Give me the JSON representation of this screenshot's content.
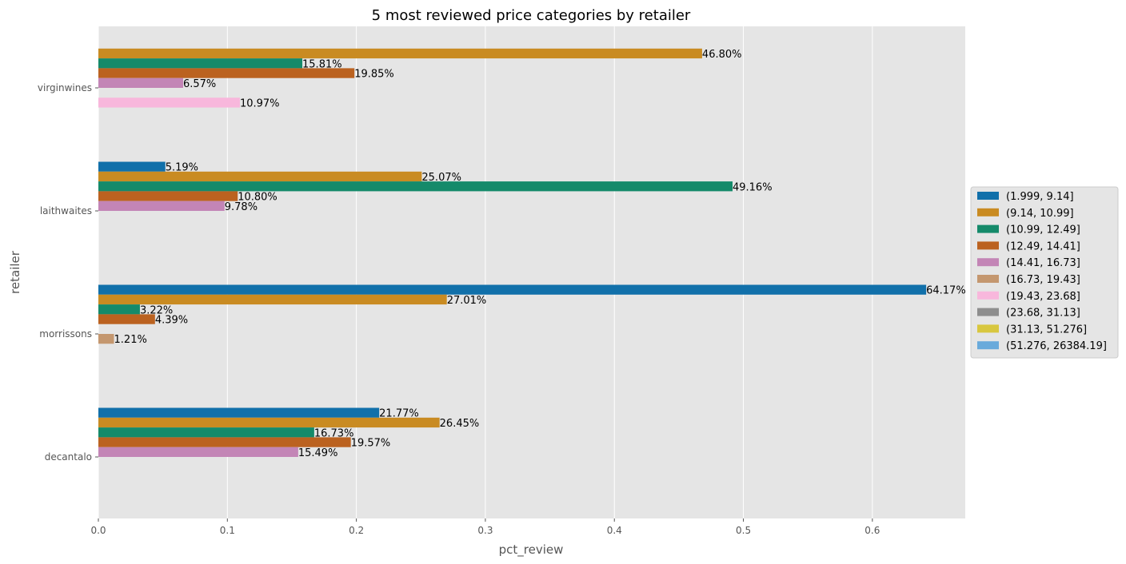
{
  "chart_data": {
    "type": "bar",
    "orientation": "horizontal",
    "title": "5 most reviewed price categories by retailer",
    "xlabel": "pct_review",
    "ylabel": "retailer",
    "xlim": [
      0,
      0.672
    ],
    "xticks": [
      0.0,
      0.1,
      0.2,
      0.3,
      0.4,
      0.5,
      0.6
    ],
    "xtick_labels": [
      "0.0",
      "0.1",
      "0.2",
      "0.3",
      "0.4",
      "0.5",
      "0.6"
    ],
    "categories": [
      "virginwines",
      "laithwaites",
      "morrissons",
      "decantalo"
    ],
    "grid": true,
    "legend_placement": "center-right outside",
    "series": [
      {
        "name": "(1.999, 9.14]",
        "color": "#1170aa",
        "values": [
          null,
          0.0519,
          0.6417,
          0.2177
        ],
        "labels": [
          null,
          "5.19%",
          "64.17%",
          "21.77%"
        ]
      },
      {
        "name": "(9.14, 10.99]",
        "color": "#c98b22",
        "values": [
          0.468,
          0.2507,
          0.2701,
          0.2645
        ],
        "labels": [
          "46.80%",
          "25.07%",
          "27.01%",
          "26.45%"
        ]
      },
      {
        "name": "(10.99, 12.49]",
        "color": "#158a6a",
        "values": [
          0.1581,
          0.4916,
          0.0322,
          0.1673
        ],
        "labels": [
          "15.81%",
          "49.16%",
          "3.22%",
          "16.73%"
        ]
      },
      {
        "name": "(12.49, 14.41]",
        "color": "#bb6220",
        "values": [
          0.1985,
          0.108,
          0.0439,
          0.1957
        ],
        "labels": [
          "19.85%",
          "10.80%",
          "4.39%",
          "19.57%"
        ]
      },
      {
        "name": "(14.41, 16.73]",
        "color": "#c385b6",
        "values": [
          0.0657,
          0.0978,
          null,
          0.1549
        ],
        "labels": [
          "6.57%",
          "9.78%",
          null,
          "15.49%"
        ]
      },
      {
        "name": "(16.73, 19.43]",
        "color": "#c4976f",
        "values": [
          null,
          null,
          0.0121,
          null
        ],
        "labels": [
          null,
          null,
          "1.21%",
          null
        ]
      },
      {
        "name": "(19.43, 23.68]",
        "color": "#f8b7dc",
        "values": [
          0.1097,
          null,
          null,
          null
        ],
        "labels": [
          "10.97%",
          null,
          null,
          null
        ]
      },
      {
        "name": "(23.68, 31.13]",
        "color": "#8e8e8e",
        "values": [
          null,
          null,
          null,
          null
        ],
        "labels": [
          null,
          null,
          null,
          null
        ]
      },
      {
        "name": "(31.13, 51.276]",
        "color": "#d8c73f",
        "values": [
          null,
          null,
          null,
          null
        ],
        "labels": [
          null,
          null,
          null,
          null
        ]
      },
      {
        "name": "(51.276, 26384.19]",
        "color": "#69aadb",
        "values": [
          null,
          null,
          null,
          null
        ],
        "labels": [
          null,
          null,
          null,
          null
        ]
      }
    ],
    "colors": {
      "plot_background": "#e5e5e5",
      "grid": "#ffffff",
      "text": "#555555"
    }
  }
}
